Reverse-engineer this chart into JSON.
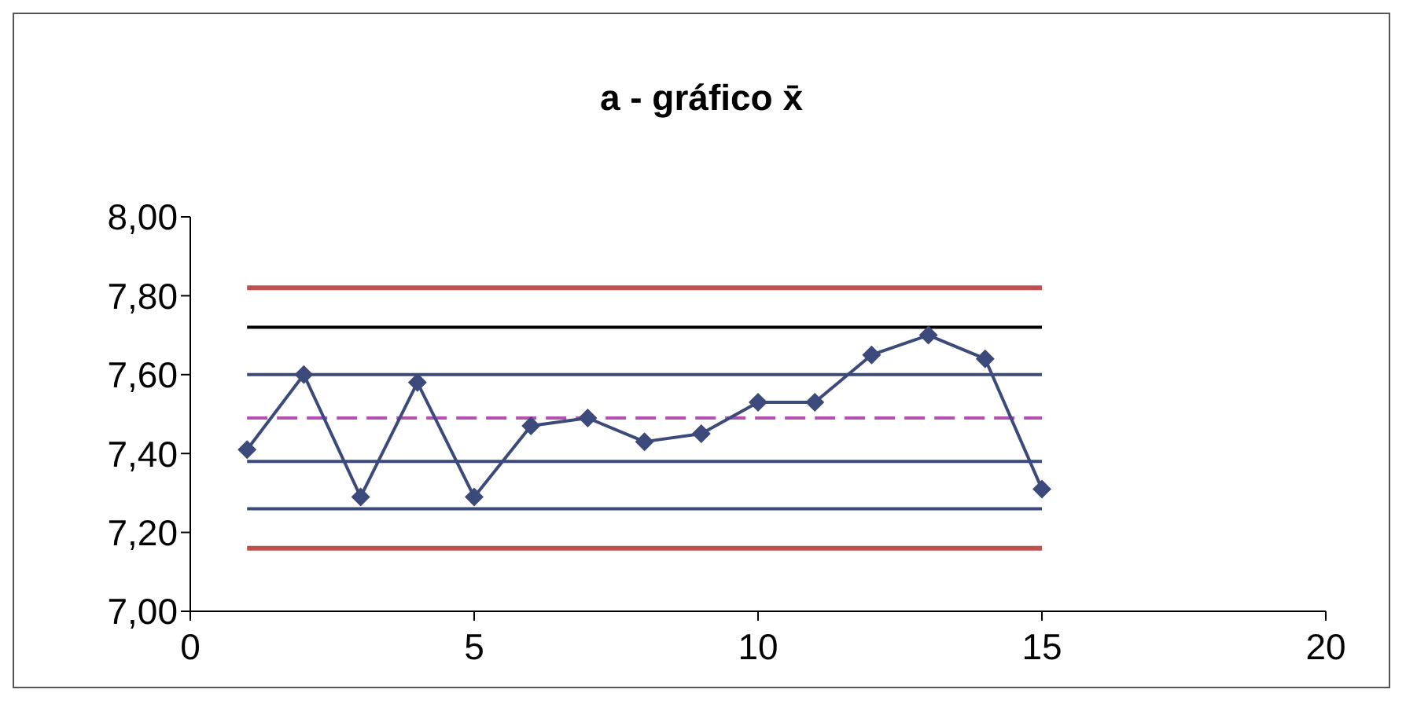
{
  "chart_data": {
    "type": "line",
    "title": "a - gráfico x̄",
    "xlim": [
      0,
      20
    ],
    "xticks": [
      0,
      5,
      10,
      15,
      20
    ],
    "ylim": [
      7,
      8
    ],
    "yticks": [
      {
        "value": 7,
        "label": "7,00"
      },
      {
        "value": 7.2,
        "label": "7,20"
      },
      {
        "value": 7.4,
        "label": "7,40"
      },
      {
        "value": 7.6,
        "label": "7,60"
      },
      {
        "value": 7.8,
        "label": "7,80"
      },
      {
        "value": 8,
        "label": "8,00"
      }
    ],
    "grid": false,
    "marker": "diamond",
    "line_style": "solid",
    "series": [
      {
        "color": "#c0504d",
        "x": [
          1,
          15
        ],
        "values": [
          7.82,
          7.82
        ],
        "marker": "none"
      },
      {
        "color": "#c0504d",
        "x": [
          1,
          15
        ],
        "values": [
          7.16,
          7.16
        ],
        "marker": "none"
      },
      {
        "color": "#000000",
        "x": [
          1,
          15
        ],
        "values": [
          7.72,
          7.72
        ],
        "marker": "none"
      },
      {
        "color": "#3b4a7a",
        "x": [
          1,
          15
        ],
        "values": [
          7.6,
          7.6
        ],
        "marker": "none"
      },
      {
        "color": "#3b4a7a",
        "x": [
          1,
          15
        ],
        "values": [
          7.38,
          7.38
        ],
        "marker": "none"
      },
      {
        "color": "#3b4a7a",
        "x": [
          1,
          15
        ],
        "values": [
          7.26,
          7.26
        ],
        "marker": "none"
      },
      {
        "color": "#b44fb4",
        "x": [
          1,
          15
        ],
        "values": [
          7.49,
          7.49
        ],
        "marker": "none",
        "line_style": "dashed"
      },
      {
        "color": "#3b4a7a",
        "x": [
          1,
          2,
          3,
          4,
          5,
          6,
          7,
          8,
          9,
          10,
          11,
          12,
          13,
          14,
          15
        ],
        "values": [
          7.41,
          7.6,
          7.29,
          7.58,
          7.29,
          7.47,
          7.49,
          7.43,
          7.45,
          7.53,
          7.53,
          7.65,
          7.7,
          7.64,
          7.31
        ]
      }
    ]
  }
}
